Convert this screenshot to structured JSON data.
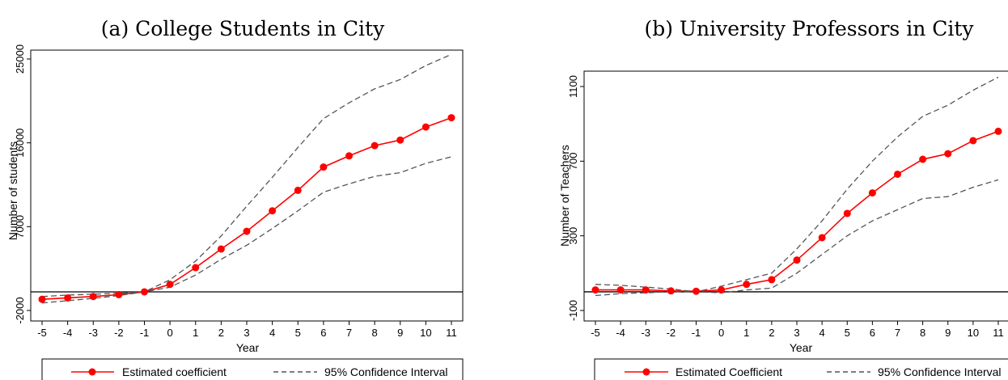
{
  "chart_data": [
    {
      "type": "line",
      "title": "(a) College Students in City",
      "xlabel": "Year",
      "ylabel": "Number of students",
      "x": [
        -5,
        -4,
        -3,
        -2,
        -1,
        0,
        1,
        2,
        3,
        4,
        5,
        6,
        7,
        8,
        9,
        10,
        11
      ],
      "xlim": [
        -5,
        11
      ],
      "ylim": [
        -2000,
        25000
      ],
      "yticks": [
        -2000,
        7000,
        16000,
        25000
      ],
      "series": [
        {
          "name": "Estimated coefficient",
          "color": "#ff0000",
          "marker": "circle",
          "values": [
            -800,
            -650,
            -500,
            -300,
            0,
            800,
            2600,
            4600,
            6500,
            8700,
            10900,
            13400,
            14600,
            15700,
            16300,
            17700,
            18700
          ]
        },
        {
          "name": "95% Confidence Interval",
          "color": "#555555",
          "dash": "dashed",
          "values": [
            -1200,
            -950,
            -700,
            -400,
            0,
            1300,
            3300,
            6000,
            9200,
            12300,
            15500,
            18600,
            20300,
            21800,
            22800,
            24300,
            25500
          ]
        },
        {
          "name": "",
          "color": "#555555",
          "dash": "dashed",
          "values": [
            -500,
            -350,
            -250,
            -150,
            0,
            500,
            1800,
            3500,
            5000,
            6800,
            8700,
            10700,
            11600,
            12400,
            12800,
            13800,
            14500
          ]
        }
      ],
      "reference_line": 0,
      "legend": {
        "position": "bottom",
        "entries": [
          "Estimated coefficient",
          "95% Confidence Interval"
        ]
      },
      "grid": false
    },
    {
      "type": "line",
      "title": "(b) University Professors in City",
      "xlabel": "Year",
      "ylabel": "Number of Teachers",
      "x": [
        -5,
        -4,
        -3,
        -2,
        -1,
        0,
        1,
        2,
        3,
        4,
        5,
        6,
        7,
        8,
        9,
        10,
        11
      ],
      "xlim": [
        -5,
        11
      ],
      "ylim": [
        -100,
        1100
      ],
      "yticks": [
        -100,
        300,
        700,
        1100
      ],
      "series": [
        {
          "name": "Estimated Coefficient",
          "color": "#ff0000",
          "marker": "circle",
          "values": [
            10,
            10,
            10,
            5,
            3,
            10,
            40,
            65,
            170,
            290,
            420,
            530,
            630,
            710,
            740,
            810,
            860
          ]
        },
        {
          "name": "95% Confidence Interval",
          "color": "#555555",
          "dash": "dashed",
          "values": [
            40,
            35,
            25,
            15,
            0,
            30,
            65,
            100,
            230,
            380,
            550,
            700,
            830,
            940,
            1000,
            1080,
            1150
          ]
        },
        {
          "name": "",
          "color": "#555555",
          "dash": "dashed",
          "values": [
            -20,
            -10,
            -5,
            0,
            0,
            -5,
            10,
            20,
            100,
            200,
            300,
            380,
            440,
            500,
            510,
            560,
            600
          ]
        }
      ],
      "reference_line": 0,
      "legend": {
        "position": "bottom",
        "entries": [
          "Estimated Coefficient",
          "95% Confidence Interval"
        ]
      },
      "grid": false
    }
  ]
}
